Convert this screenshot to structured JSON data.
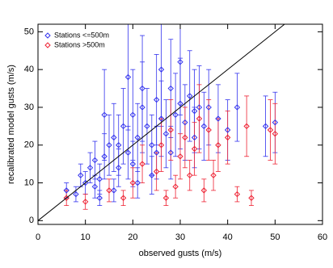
{
  "chart_data": {
    "type": "scatter",
    "xlabel": "observed gusts (m/s)",
    "ylabel": "recalibrated model gusts (m/s)",
    "xlim": [
      0,
      60
    ],
    "ylim": [
      -1,
      52
    ],
    "xticks": [
      0,
      10,
      20,
      30,
      40,
      50,
      60
    ],
    "yticks": [
      0,
      10,
      20,
      30,
      40,
      50
    ],
    "identity_line": true,
    "legend": "upper-left",
    "series": [
      {
        "name": "Stations <=500m",
        "color": "#3333ee",
        "x": [
          10,
          8,
          9,
          11,
          12,
          13,
          14,
          15,
          16,
          17,
          18,
          19,
          20,
          21,
          22,
          23,
          24,
          25,
          26,
          27,
          28,
          29,
          30,
          31,
          32,
          33,
          34,
          35,
          36,
          38,
          40,
          42,
          48,
          50,
          20,
          16,
          14,
          19,
          22,
          26,
          30,
          24,
          12,
          17,
          28,
          33,
          6,
          21,
          13,
          25
        ],
        "values": [
          10,
          7,
          12,
          14,
          9,
          11,
          17,
          20,
          22,
          14,
          25,
          18,
          28,
          22,
          30,
          25,
          20,
          32,
          27,
          23,
          35,
          28,
          31,
          26,
          33,
          29,
          30,
          25,
          30,
          27,
          24,
          30,
          25,
          26,
          15,
          8,
          28,
          38,
          35,
          40,
          42,
          12,
          16,
          20,
          18,
          22,
          8,
          10,
          6,
          18
        ],
        "errors": [
          3,
          2,
          3,
          4,
          3,
          4,
          6,
          8,
          9,
          5,
          10,
          7,
          12,
          9,
          12,
          10,
          8,
          12,
          10,
          9,
          13,
          11,
          12,
          10,
          12,
          11,
          11,
          9,
          10,
          9,
          8,
          9,
          8,
          8,
          6,
          3,
          12,
          14,
          14,
          15,
          14,
          5,
          5,
          8,
          7,
          8,
          2,
          4,
          2,
          7
        ]
      },
      {
        "name": "Stations >500m",
        "color": "#ee2233",
        "x": [
          6,
          10,
          15,
          18,
          20,
          22,
          25,
          26,
          28,
          29,
          30,
          31,
          32,
          33,
          34,
          35,
          36,
          38,
          40,
          42,
          44,
          45,
          49,
          50,
          27,
          37
        ],
        "values": [
          6,
          5,
          8,
          6,
          10,
          15,
          13,
          20,
          24,
          9,
          17,
          22,
          12,
          19,
          27,
          8,
          24,
          20,
          22,
          7,
          25,
          6,
          24,
          23,
          6,
          12
        ],
        "errors": [
          2,
          2,
          3,
          2,
          4,
          5,
          5,
          7,
          8,
          3,
          6,
          8,
          4,
          7,
          9,
          3,
          8,
          7,
          7,
          2,
          8,
          2,
          8,
          8,
          2,
          4
        ]
      }
    ]
  }
}
